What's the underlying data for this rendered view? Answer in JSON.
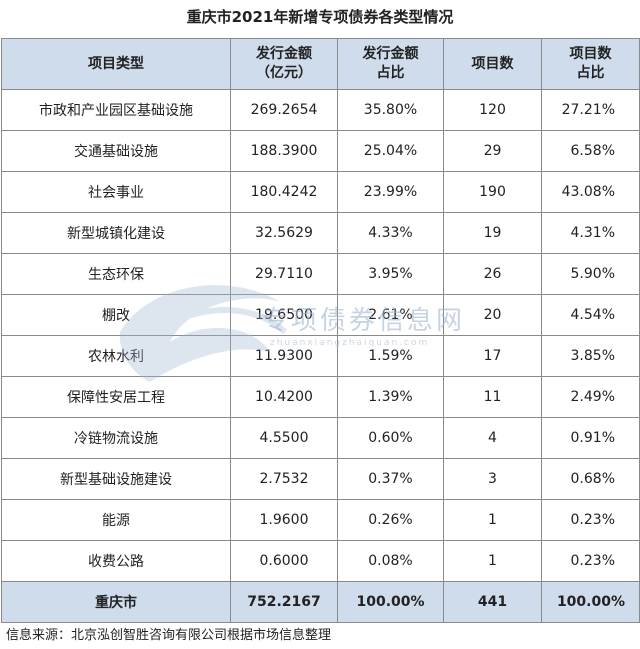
{
  "title": "重庆市2021年新增专项债券各类型情况",
  "headers": {
    "type": "项目类型",
    "amount_line1": "发行金额",
    "amount_line2": "（亿元）",
    "amount_pct_line1": "发行金额",
    "amount_pct_line2": "占比",
    "count": "项目数",
    "count_pct_line1": "项目数",
    "count_pct_line2": "占比"
  },
  "rows": [
    {
      "type": "市政和产业园区基础设施",
      "amount": "269.2654",
      "amount_pct": "35.80%",
      "count": "120",
      "count_pct": "27.21%"
    },
    {
      "type": "交通基础设施",
      "amount": "188.3900",
      "amount_pct": "25.04%",
      "count": "29",
      "count_pct": "6.58%"
    },
    {
      "type": "社会事业",
      "amount": "180.4242",
      "amount_pct": "23.99%",
      "count": "190",
      "count_pct": "43.08%"
    },
    {
      "type": "新型城镇化建设",
      "amount": "32.5629",
      "amount_pct": "4.33%",
      "count": "19",
      "count_pct": "4.31%"
    },
    {
      "type": "生态环保",
      "amount": "29.7110",
      "amount_pct": "3.95%",
      "count": "26",
      "count_pct": "5.90%"
    },
    {
      "type": "棚改",
      "amount": "19.6500",
      "amount_pct": "2.61%",
      "count": "20",
      "count_pct": "4.54%"
    },
    {
      "type": "农林水利",
      "amount": "11.9300",
      "amount_pct": "1.59%",
      "count": "17",
      "count_pct": "3.85%"
    },
    {
      "type": "保障性安居工程",
      "amount": "10.4200",
      "amount_pct": "1.39%",
      "count": "11",
      "count_pct": "2.49%"
    },
    {
      "type": "冷链物流设施",
      "amount": "4.5500",
      "amount_pct": "0.60%",
      "count": "4",
      "count_pct": "0.91%"
    },
    {
      "type": "新型基础设施建设",
      "amount": "2.7532",
      "amount_pct": "0.37%",
      "count": "3",
      "count_pct": "0.68%"
    },
    {
      "type": "能源",
      "amount": "1.9600",
      "amount_pct": "0.26%",
      "count": "1",
      "count_pct": "0.23%"
    },
    {
      "type": "收费公路",
      "amount": "0.6000",
      "amount_pct": "0.08%",
      "count": "1",
      "count_pct": "0.23%"
    }
  ],
  "total": {
    "type": "重庆市",
    "amount": "752.2167",
    "amount_pct": "100.00%",
    "count": "441",
    "count_pct": "100.00%"
  },
  "watermark": {
    "text": "专项债券信息网",
    "sub": "zhuanxiangzhaiquan.com"
  },
  "source": "信息来源：北京泓创智胜咨询有限公司根据市场信息整理",
  "colors": {
    "header_bg": "#cfdcec",
    "border": "#8a8a8a",
    "watermark": "#9fb7d2"
  }
}
